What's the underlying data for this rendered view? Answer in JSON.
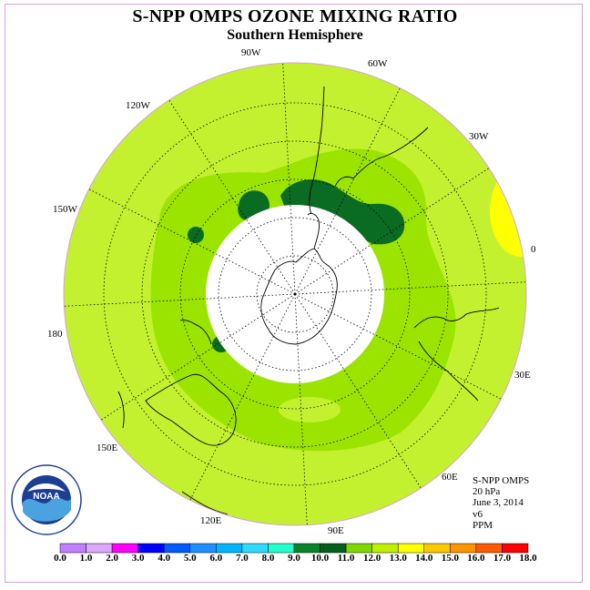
{
  "title": "S-NPP OMPS OZONE MIXING RATIO",
  "subtitle": "Southern Hemisphere",
  "longitude_labels": [
    "90W",
    "60W",
    "30W",
    "0",
    "30E",
    "60E",
    "90E",
    "120E",
    "150E",
    "180",
    "150W",
    "120W"
  ],
  "info": {
    "instrument": "S-NPP OMPS",
    "level": "20 hPa",
    "date": "June 3, 2014",
    "version": "v6",
    "units": "PPM"
  },
  "logo_text": "NOAA",
  "colorbar": {
    "ticks": [
      "0.0",
      "1.0",
      "2.0",
      "3.0",
      "4.0",
      "5.0",
      "6.0",
      "7.0",
      "8.0",
      "9.0",
      "10.0",
      "11.0",
      "12.0",
      "13.0",
      "14.0",
      "15.0",
      "16.0",
      "17.0",
      "18.0"
    ],
    "colors": [
      "#bf7fff",
      "#dca8ff",
      "#ff00ff",
      "#0000ff",
      "#005bff",
      "#1e90ff",
      "#00b4ff",
      "#2ddcff",
      "#22ffcc",
      "#08852a",
      "#045f1c",
      "#7fd800",
      "#c0f000",
      "#ffff00",
      "#ffc800",
      "#ff9600",
      "#ff5a00",
      "#ff0000",
      "#8b5a2b"
    ]
  },
  "map_colors": {
    "band_12_13": "#c3f12f",
    "band_11_12": "#9be400",
    "band_10_11": "#0a6b22",
    "band_13_14": "#ffff00",
    "no_data": "#ffffff"
  }
}
